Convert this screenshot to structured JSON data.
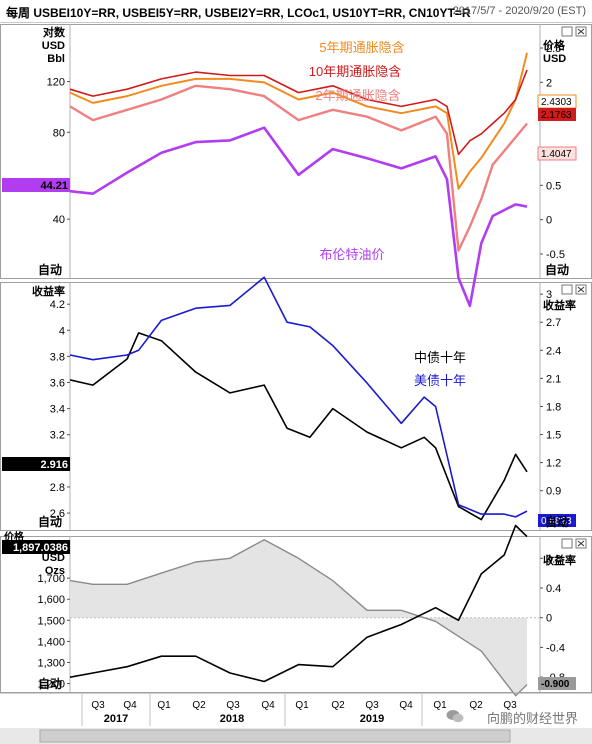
{
  "header": {
    "title": "每周 USBEI10Y=RR, USBEI5Y=RR, USBEI2Y=RR, LCOc1, US10YT=RR, CN10YT=R",
    "date_range": "2017/5/7 - 2020/9/20 (EST)"
  },
  "watermark": "向鹏的财经世界",
  "panels": {
    "top": {
      "left_axis_title": [
        "对数",
        "USD",
        "Bbl"
      ],
      "right_axis_title": [
        "价格",
        "USD"
      ],
      "auto_left": "自动",
      "auto_right": "自动",
      "legend": [
        {
          "label": "5年期通胀隐含",
          "color": "#f28b1e"
        },
        {
          "label": "10年期通胀隐含",
          "color": "#d11a1a"
        },
        {
          "label": "2年期通胀隐含",
          "color": "#f08080"
        },
        {
          "label": "布伦特油价",
          "color": "#b23cf0"
        }
      ],
      "left_ticks": [
        "120",
        "80",
        "40"
      ],
      "right_ticks": [
        "2.5",
        "2",
        "1.5",
        "1",
        "0.5",
        "0",
        "-0.5"
      ],
      "last_values": {
        "brent": "44.21",
        "bei5y": "2.4303",
        "bei10y": "2.1763",
        "bei2y": "1.4047"
      }
    },
    "middle": {
      "left_axis_title": "收益率",
      "right_axis_title": "收益率",
      "auto_left": "自动",
      "auto_right": "自动",
      "legend": [
        {
          "label": "中债十年",
          "color": "#000000"
        },
        {
          "label": "美债十年",
          "color": "#1a1ad1"
        }
      ],
      "left_ticks": [
        "4.2",
        "4",
        "3.8",
        "3.6",
        "3.4",
        "3.2",
        "3",
        "2.8",
        "2.6"
      ],
      "right_ticks": [
        "3",
        "2.7",
        "2.4",
        "2.1",
        "1.8",
        "1.5",
        "1.2",
        "0.9",
        "0.6"
      ],
      "last_values": {
        "cn10y": "2.916",
        "us10y": "0.6823"
      }
    },
    "bottom": {
      "left_axis_title": [
        "价格",
        "USD",
        "Ozs"
      ],
      "right_axis_title": "收益率",
      "auto_left": "自动",
      "left_ticks": [
        "1,700",
        "1,600",
        "1,500",
        "1,400",
        "1,300",
        "1,200"
      ],
      "right_ticks": [
        "0.8",
        "0.4",
        "0",
        "-0.4",
        "-0.8"
      ],
      "last_values": {
        "gold": "1,897.0386",
        "real_yield": "-0.900"
      }
    }
  },
  "x_axis": {
    "quarters": [
      "Q3",
      "Q4",
      "Q1",
      "Q2",
      "Q3",
      "Q4",
      "Q1",
      "Q2",
      "Q3",
      "Q4",
      "Q1",
      "Q2",
      "Q3"
    ],
    "years": [
      "2017",
      "2018",
      "2019"
    ]
  },
  "colors": {
    "bei5y": "#f28b1e",
    "bei10y": "#d11a1a",
    "bei2y": "#f08080",
    "brent": "#b23cf0",
    "cn10y": "#000000",
    "us10y": "#1a1ad1",
    "gold": "#000000",
    "real_yield": "#8a8a8a"
  },
  "chart_data": [
    {
      "type": "line",
      "x": [
        "2017-05",
        "2017-07",
        "2017-10",
        "2018-01",
        "2018-04",
        "2018-07",
        "2018-10",
        "2019-01",
        "2019-04",
        "2019-07",
        "2019-10",
        "2020-01",
        "2020-02",
        "2020-03",
        "2020-04",
        "2020-05",
        "2020-06",
        "2020-07",
        "2020-08",
        "2020-09"
      ],
      "series": [
        {
          "name": "5年期通胀隐含",
          "axis": "right",
          "values": [
            1.85,
            1.7,
            1.8,
            1.95,
            2.05,
            2.05,
            2.0,
            1.75,
            1.85,
            1.65,
            1.55,
            1.65,
            1.55,
            0.45,
            0.7,
            0.9,
            1.15,
            1.4,
            1.75,
            2.43
          ]
        },
        {
          "name": "10年期通胀隐含",
          "axis": "right",
          "values": [
            1.9,
            1.8,
            1.9,
            2.05,
            2.15,
            2.1,
            2.1,
            1.85,
            1.95,
            1.75,
            1.65,
            1.75,
            1.65,
            0.95,
            1.15,
            1.25,
            1.4,
            1.55,
            1.75,
            2.18
          ]
        },
        {
          "name": "2年期通胀隐含",
          "axis": "right",
          "values": [
            1.65,
            1.45,
            1.6,
            1.75,
            1.95,
            1.9,
            1.8,
            1.45,
            1.6,
            1.5,
            1.3,
            1.5,
            1.25,
            -0.45,
            -0.1,
            0.3,
            0.8,
            1.0,
            1.2,
            1.4
          ]
        },
        {
          "name": "布伦特油价",
          "axis": "left",
          "values": [
            50,
            49,
            58,
            68,
            74,
            75,
            83,
            57,
            70,
            65,
            60,
            66,
            55,
            25,
            20,
            33,
            41,
            43,
            45,
            44.21
          ]
        }
      ],
      "left_axis": {
        "title": [
          "对数",
          "USD",
          "Bbl"
        ],
        "scale": "log",
        "ticks": [
          40,
          80,
          120
        ]
      },
      "right_axis": {
        "title": [
          "价格",
          "USD"
        ],
        "ticks": [
          -0.5,
          0,
          0.5,
          1,
          1.5,
          2,
          2.5
        ],
        "ylim": [
          -0.85,
          2.85
        ]
      }
    },
    {
      "type": "line",
      "x": [
        "2017-05",
        "2017-07",
        "2017-10",
        "2017-11",
        "2018-01",
        "2018-04",
        "2018-07",
        "2018-10",
        "2018-12",
        "2019-02",
        "2019-04",
        "2019-07",
        "2019-10",
        "2019-12",
        "2020-01",
        "2020-03",
        "2020-05",
        "2020-07",
        "2020-08",
        "2020-09"
      ],
      "series": [
        {
          "name": "中债十年",
          "axis": "left",
          "values": [
            3.62,
            3.58,
            3.78,
            3.98,
            3.92,
            3.68,
            3.52,
            3.58,
            3.25,
            3.18,
            3.4,
            3.22,
            3.1,
            3.18,
            3.1,
            2.65,
            2.55,
            2.85,
            3.05,
            2.916
          ]
        },
        {
          "name": "美债十年",
          "axis": "right",
          "values": [
            2.35,
            2.3,
            2.35,
            2.4,
            2.72,
            2.85,
            2.88,
            3.18,
            2.7,
            2.65,
            2.45,
            2.05,
            1.62,
            1.9,
            1.8,
            0.75,
            0.65,
            0.65,
            0.62,
            0.6823
          ]
        }
      ],
      "left_axis": {
        "title": "收益率",
        "ticks": [
          2.6,
          2.8,
          3,
          3.2,
          3.4,
          3.6,
          3.8,
          4,
          4.2
        ],
        "ylim": [
          2.47,
          4.37
        ]
      },
      "right_axis": {
        "title": "收益率",
        "ticks": [
          0.6,
          0.9,
          1.2,
          1.5,
          1.8,
          2.1,
          2.4,
          2.7,
          3
        ],
        "ylim": [
          0.48,
          3.13
        ]
      }
    },
    {
      "type": "line",
      "x": [
        "2017-05",
        "2017-07",
        "2017-10",
        "2018-01",
        "2018-04",
        "2018-07",
        "2018-10",
        "2019-01",
        "2019-04",
        "2019-07",
        "2019-10",
        "2020-01",
        "2020-03",
        "2020-05",
        "2020-07",
        "2020-08",
        "2020-09"
      ],
      "series": [
        {
          "name": "黄金价格",
          "axis": "left",
          "values": [
            1230,
            1250,
            1280,
            1330,
            1330,
            1250,
            1210,
            1290,
            1280,
            1420,
            1480,
            1560,
            1500,
            1720,
            1810,
            1950,
            1897.0386
          ]
        },
        {
          "name": "实际收益率",
          "axis": "right",
          "values": [
            0.5,
            0.45,
            0.45,
            0.6,
            0.75,
            0.8,
            1.05,
            0.8,
            0.5,
            0.1,
            0.1,
            -0.05,
            -0.25,
            -0.45,
            -0.85,
            -1.05,
            -0.9
          ]
        }
      ],
      "left_axis": {
        "title": [
          "价格",
          "USD",
          "Ozs"
        ],
        "ticks": [
          1200,
          1300,
          1400,
          1500,
          1600,
          1700
        ],
        "ylim": [
          1160,
          1900
        ]
      },
      "right_axis": {
        "title": "收益率",
        "ticks": [
          -0.8,
          -0.4,
          0,
          0.4,
          0.8
        ],
        "ylim": [
          -1.0,
          1.1
        ]
      }
    }
  ]
}
